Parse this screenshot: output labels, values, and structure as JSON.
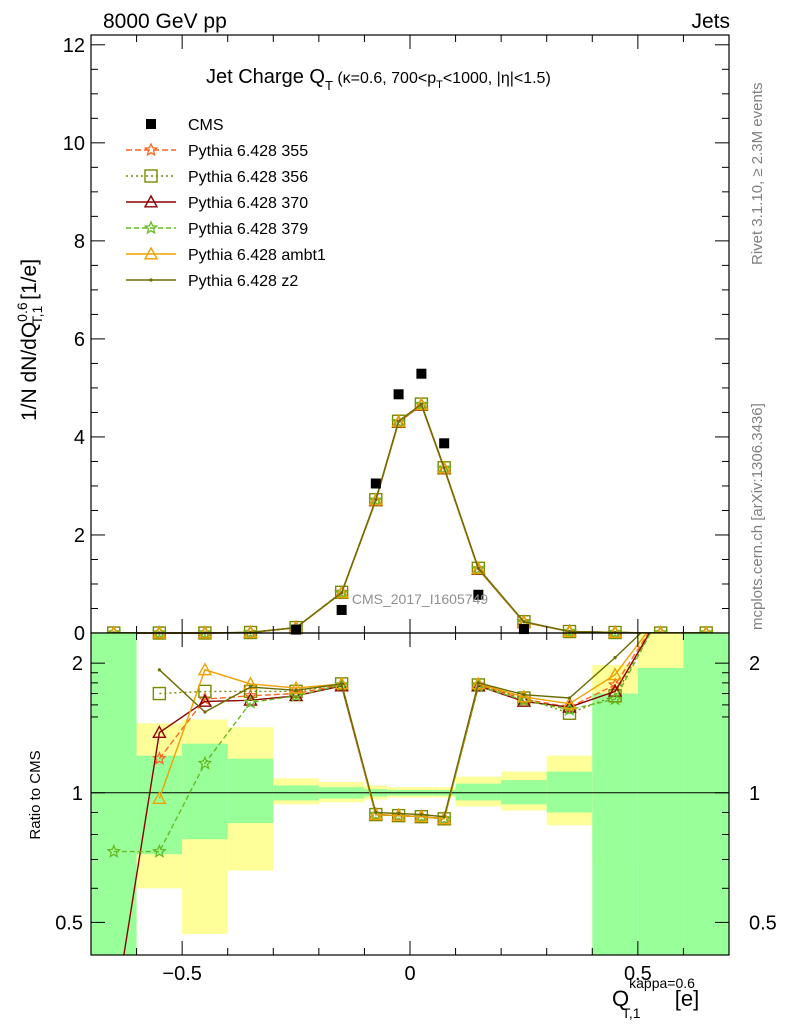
{
  "header": {
    "energy": "8000 GeV pp",
    "category": "Jets",
    "analysis_tag": "CMS_2017_I1605749"
  },
  "side_text": {
    "rivet": "Rivet 3.1.10, ≥ 2.3M events",
    "mcplots": "mcplots.cern.ch [arXiv:1306.3436]"
  },
  "chart_data": [
    {
      "type": "line",
      "title": "Jet Charge Q_T (κ=0.6, 700<p_T<1000, |η|<1.5)",
      "title_main": "Jet Charge Q",
      "title_sub": "T",
      "title_rest": " (κ=0.6, 700<p",
      "title_rest_sub": "T",
      "title_end": "<1000, |η|<1.5)",
      "ylabel": "1/N dN/dQ",
      "ylabel_sup": "0.6",
      "ylabel_sub": "T,1",
      "ylabel_unit": " [1/e]",
      "xlim": [
        -0.7,
        0.7
      ],
      "ylim": [
        0,
        12.2
      ],
      "yticks": [
        0,
        2,
        4,
        6,
        8,
        10,
        12
      ],
      "x": [
        -0.65,
        -0.55,
        -0.45,
        -0.35,
        -0.25,
        -0.15,
        -0.075,
        -0.025,
        0.025,
        0.075,
        0.15,
        0.25,
        0.35,
        0.45,
        0.55,
        0.65
      ],
      "series": [
        {
          "name": "CMS",
          "color": "#000000",
          "marker": "square",
          "values": [
            0.0,
            0.0,
            0.0,
            0.0,
            0.07,
            0.47,
            3.05,
            4.87,
            5.29,
            3.87,
            0.78,
            0.08,
            0.0,
            0.0,
            0.0,
            0.0
          ]
        },
        {
          "name": "Pythia 6.428 355",
          "color": "#ff6622",
          "marker": "star",
          "dash": "6,3",
          "values": [
            0.0,
            0.0,
            0.0,
            0.01,
            0.11,
            0.83,
            2.71,
            4.31,
            4.66,
            3.36,
            1.31,
            0.23,
            0.03,
            0.01,
            0.0,
            0.0
          ]
        },
        {
          "name": "Pythia 6.428 356",
          "color": "#7a8a00",
          "marker": "square-open",
          "dash": "2,3",
          "values": [
            0.0,
            0.0,
            0.0,
            0.01,
            0.11,
            0.83,
            2.72,
            4.32,
            4.67,
            3.37,
            1.32,
            0.23,
            0.03,
            0.01,
            0.0,
            0.0
          ]
        },
        {
          "name": "Pythia 6.428 370",
          "color": "#8b0000",
          "marker": "triangle-open",
          "dash": "",
          "values": [
            0.0,
            0.0,
            0.0,
            0.01,
            0.11,
            0.82,
            2.7,
            4.3,
            4.65,
            3.35,
            1.3,
            0.22,
            0.03,
            0.01,
            0.0,
            0.0
          ]
        },
        {
          "name": "Pythia 6.428 379",
          "color": "#66bb22",
          "marker": "star",
          "dash": "5,3",
          "values": [
            0.0,
            0.0,
            0.0,
            0.01,
            0.11,
            0.82,
            2.71,
            4.31,
            4.66,
            3.36,
            1.31,
            0.22,
            0.03,
            0.01,
            0.0,
            0.0
          ]
        },
        {
          "name": "Pythia 6.428 ambt1",
          "color": "#f0a000",
          "marker": "triangle-open",
          "dash": "",
          "values": [
            0.0,
            0.0,
            0.0,
            0.01,
            0.11,
            0.82,
            2.71,
            4.31,
            4.66,
            3.36,
            1.31,
            0.22,
            0.03,
            0.01,
            0.0,
            0.0
          ]
        },
        {
          "name": "Pythia 6.428 z2",
          "color": "#6b6b00",
          "marker": "dot",
          "dash": "",
          "values": [
            0.0,
            0.0,
            0.0,
            0.01,
            0.11,
            0.82,
            2.72,
            4.32,
            4.67,
            3.37,
            1.32,
            0.23,
            0.03,
            0.01,
            0.0,
            0.0
          ]
        }
      ]
    },
    {
      "type": "line",
      "ylabel": "Ratio to CMS",
      "xlabel": "Q",
      "xlabel_sup": "kappa=0.6",
      "xlabel_sub": "T,1",
      "xlabel_unit": " [e]",
      "log_scale_y": true,
      "ylim": [
        0.42,
        2.35
      ],
      "xlim": [
        -0.7,
        0.7
      ],
      "yticks": [
        0.5,
        1,
        2
      ],
      "xticks": [
        -0.5,
        0,
        0.5
      ],
      "band_edges": [
        -0.7,
        -0.6,
        -0.5,
        -0.4,
        -0.3,
        -0.2,
        -0.1,
        -0.05,
        0.0,
        0.05,
        0.1,
        0.2,
        0.3,
        0.4,
        0.5,
        0.6,
        0.7
      ],
      "band_green_lo": [
        0.35,
        0.72,
        0.78,
        0.85,
        0.96,
        0.97,
        0.98,
        0.985,
        0.985,
        0.985,
        0.96,
        0.94,
        0.9,
        0.35,
        0.35,
        0.35
      ],
      "band_green_hi": [
        3.0,
        1.22,
        1.3,
        1.2,
        1.04,
        1.03,
        1.02,
        1.015,
        1.015,
        1.015,
        1.05,
        1.07,
        1.12,
        1.7,
        1.95,
        3.0
      ],
      "band_yellow_lo": [
        0.35,
        0.6,
        0.47,
        0.66,
        0.94,
        0.95,
        0.965,
        0.975,
        0.975,
        0.975,
        0.93,
        0.91,
        0.84,
        0.69,
        0.35,
        0.35
      ],
      "band_yellow_hi": [
        3.0,
        1.45,
        1.48,
        1.42,
        1.08,
        1.06,
        1.04,
        1.03,
        1.03,
        1.03,
        1.09,
        1.12,
        1.22,
        1.98,
        2.35,
        3.0
      ],
      "series": [
        {
          "name": "Pythia 6.428 355",
          "values": [
            null,
            1.2,
            1.65,
            1.68,
            1.7,
            1.78,
            0.89,
            0.885,
            0.88,
            0.87,
            1.78,
            1.65,
            1.58,
            1.78,
            2.6,
            null
          ]
        },
        {
          "name": "Pythia 6.428 356",
          "values": [
            null,
            1.7,
            1.72,
            1.72,
            1.72,
            1.79,
            0.89,
            0.885,
            0.88,
            0.87,
            1.78,
            1.66,
            1.53,
            1.68,
            2.6,
            null
          ]
        },
        {
          "name": "Pythia 6.428 370",
          "values": [
            0.3,
            1.38,
            1.63,
            1.64,
            1.68,
            1.77,
            0.89,
            0.885,
            0.88,
            0.87,
            1.77,
            1.63,
            1.58,
            1.72,
            2.6,
            null
          ]
        },
        {
          "name": "Pythia 6.428 379",
          "values": [
            0.73,
            0.73,
            1.17,
            1.62,
            1.68,
            1.78,
            0.89,
            0.885,
            0.88,
            0.87,
            1.77,
            1.64,
            1.56,
            1.65,
            2.6,
            null
          ]
        },
        {
          "name": "Pythia 6.428 ambt1",
          "values": [
            null,
            0.97,
            1.93,
            1.79,
            1.75,
            1.79,
            0.89,
            0.885,
            0.88,
            0.87,
            1.79,
            1.67,
            1.61,
            1.88,
            2.6,
            null
          ]
        },
        {
          "name": "Pythia 6.428 z2",
          "values": [
            null,
            1.93,
            1.54,
            1.76,
            1.73,
            1.79,
            0.9,
            0.895,
            0.89,
            0.88,
            1.8,
            1.69,
            1.66,
            2.06,
            2.6,
            null
          ]
        }
      ]
    }
  ]
}
